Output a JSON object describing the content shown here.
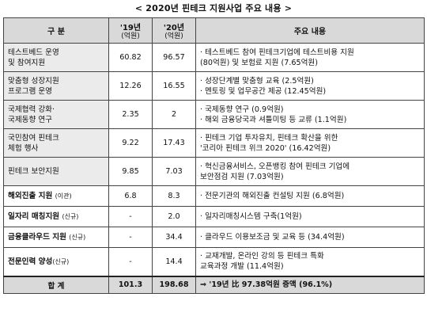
{
  "title": "< 2020년 핀테크 지원사업 주요 내용 >",
  "header": {
    "category": "구   분",
    "y2019": "'19년",
    "y2020": "'20년",
    "unit": "(억원)",
    "content": "주요 내용"
  },
  "rows": [
    {
      "name1": "테스트베드 운영",
      "name2": "및 참여지원",
      "v19": "60.82",
      "v20": "96.57",
      "c1": "· 테스트베드 참여 핀테크기업에 테스트비용 지원",
      "c2": "(80억원) 및 보험료 지원 (7.65억원)"
    },
    {
      "name1": "맞춤형 성장지원",
      "name2": "프로그램 운영",
      "v19": "12.26",
      "v20": "16.55",
      "c1": "· 성장단계별 맞춤형 교육 (2.5억원)",
      "c2": "· 멘토링 및 업무공간 제공 (12.45억원)"
    },
    {
      "name1": "국제협력 강화·",
      "name2": "국제동향 연구",
      "v19": "2.35",
      "v20": "2",
      "c1": "· 국제동향 연구 (0.9억원)",
      "c2": "· 해외 금융당국과 셔틀미팅 등 교류 (1.1억원)"
    },
    {
      "name1": "국민참여 핀테크",
      "name2": "체험 행사",
      "v19": "9.22",
      "v20": "17.43",
      "c1": "· 핀테크 기업 투자유치, 핀테크 확산을 위한",
      "c2": "'코리아 핀테크 위크 2020' (16.42억원)"
    },
    {
      "name1": "핀테크 보안지원",
      "name2": "",
      "v19": "9.85",
      "v20": "7.03",
      "c1": "· 혁신금융서비스, 오픈뱅킹 참여 핀테크 기업에",
      "c2": "보안점검 지원 (7.03억원)"
    },
    {
      "name1": "해외진출 지원",
      "tag": "(이관)",
      "v19": "6.8",
      "v20": "8.3",
      "c1": "· 전문기관의 해외진출 컨설팅 지원 (6.8억원)",
      "c2": ""
    },
    {
      "name1": "일자리 매칭지원",
      "tag": "(신규)",
      "v19": "-",
      "v20": "2.0",
      "c1": "· 일자리매칭시스템 구축(1억원)",
      "c2": ""
    },
    {
      "name1": "금융클라우드 지원",
      "tag": "(신규)",
      "v19": "-",
      "v20": "34.4",
      "c1": "· 클라우드 이용보조금 및 교육 등 (34.4억원)",
      "c2": ""
    },
    {
      "name1": "전문인력 양성",
      "tag": "(신규)",
      "v19": "-",
      "v20": "14.4",
      "c1": "· 교재개발, 온라인 강의 등 핀테크 특화",
      "c2": "교육과정 개발 (11.4억원)"
    }
  ],
  "total": {
    "label": "합   계",
    "v19": "101.3",
    "v20": "198.68",
    "content": "⇒ '19년 比 97.38억원 증액 (96.1%)"
  }
}
